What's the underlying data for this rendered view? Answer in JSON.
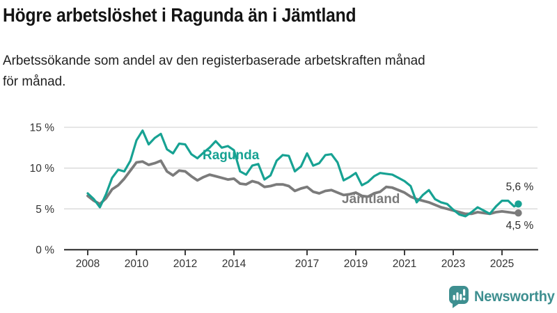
{
  "header": {
    "title": "Högre arbetslöshet i Ragunda än i Jämtland",
    "subtitle": "Arbetssökande som andel av den registerbaserade arbetskraften månad\nför månad."
  },
  "chart_data": {
    "type": "line",
    "title": "Högre arbetslöshet i Ragunda än i Jämtland",
    "xlabel": "",
    "ylabel": "",
    "xlim": [
      2008,
      2025.67
    ],
    "ylim": [
      0,
      15.5
    ],
    "grid": true,
    "legend_position": "inline-labels",
    "x_ticks": [
      2008,
      2010,
      2012,
      2014,
      2017,
      2019,
      2021,
      2023,
      2025
    ],
    "x_tick_labels": [
      "2008",
      "2010",
      "2012",
      "2014",
      "2017",
      "2019",
      "2021",
      "2023",
      "2025"
    ],
    "y_ticks": [
      0,
      5,
      10,
      15
    ],
    "y_tick_labels": [
      "0 %",
      "5 %",
      "10 %",
      "15 %"
    ],
    "colors": {
      "grid": "#d8d8d8",
      "axis": "#3c3c3c",
      "tick_text": "#333333",
      "end_label_text": "#2b2b2b"
    },
    "x": [
      2008,
      2008.25,
      2008.5,
      2008.75,
      2009,
      2009.25,
      2009.5,
      2009.75,
      2010,
      2010.25,
      2010.5,
      2010.75,
      2011,
      2011.25,
      2011.5,
      2011.75,
      2012,
      2012.25,
      2012.5,
      2012.75,
      2013,
      2013.25,
      2013.5,
      2013.75,
      2014,
      2014.25,
      2014.5,
      2014.75,
      2015,
      2015.25,
      2015.5,
      2015.75,
      2016,
      2016.25,
      2016.5,
      2016.75,
      2017,
      2017.25,
      2017.5,
      2017.75,
      2018,
      2018.25,
      2018.5,
      2018.75,
      2019,
      2019.25,
      2019.5,
      2019.75,
      2020,
      2020.25,
      2020.5,
      2020.75,
      2021,
      2021.25,
      2021.5,
      2021.75,
      2022,
      2022.25,
      2022.5,
      2022.75,
      2023,
      2023.25,
      2023.5,
      2023.75,
      2024,
      2024.25,
      2024.5,
      2024.75,
      2025,
      2025.25,
      2025.5,
      2025.67
    ],
    "series": [
      {
        "name": "Ragunda",
        "color": "#17A293",
        "end_label": "5,6 %",
        "end_value": 5.6,
        "values": [
          6.9,
          6.2,
          5.2,
          6.8,
          8.8,
          9.8,
          9.6,
          10.9,
          13.4,
          14.6,
          12.9,
          13.7,
          14.2,
          12.3,
          11.8,
          13.0,
          12.9,
          11.7,
          11.2,
          11.9,
          12.5,
          13.3,
          12.5,
          12.7,
          12.2,
          9.6,
          9.2,
          10.3,
          10.5,
          8.6,
          9.1,
          10.9,
          11.6,
          11.5,
          9.6,
          10.2,
          11.8,
          10.3,
          10.6,
          11.6,
          11.7,
          10.7,
          8.5,
          8.9,
          9.4,
          7.9,
          8.3,
          9.0,
          9.4,
          9.3,
          9.2,
          8.8,
          8.4,
          7.8,
          5.8,
          6.7,
          7.3,
          6.2,
          5.8,
          5.6,
          4.9,
          4.3,
          4.1,
          4.6,
          5.2,
          4.8,
          4.4,
          5.3,
          6.0,
          6.0,
          5.3,
          5.6
        ]
      },
      {
        "name": "Jämtland",
        "color": "#7B7B7B",
        "end_label": "4,5 %",
        "end_value": 4.5,
        "values": [
          6.6,
          6.0,
          5.6,
          6.3,
          7.4,
          7.9,
          8.7,
          9.7,
          10.7,
          10.8,
          10.4,
          10.6,
          10.9,
          9.6,
          9.1,
          9.7,
          9.6,
          9.0,
          8.5,
          8.9,
          9.2,
          9.0,
          8.8,
          8.6,
          8.7,
          8.1,
          8.0,
          8.4,
          8.2,
          7.7,
          7.8,
          8.0,
          8.0,
          7.8,
          7.2,
          7.5,
          7.7,
          7.1,
          6.9,
          7.2,
          7.3,
          7.0,
          6.7,
          6.8,
          7.0,
          6.6,
          6.5,
          6.9,
          7.1,
          7.7,
          7.6,
          7.3,
          7.0,
          6.5,
          6.2,
          6.0,
          5.8,
          5.5,
          5.2,
          5.0,
          4.8,
          4.6,
          4.4,
          4.4,
          4.6,
          4.5,
          4.4,
          4.6,
          4.7,
          4.6,
          4.5,
          4.5
        ]
      }
    ]
  },
  "footer": {
    "brand": "Newsworthy",
    "brand_color": "#3E8F90",
    "logo_icon": "bar-chart-speech-bubble-icon"
  }
}
